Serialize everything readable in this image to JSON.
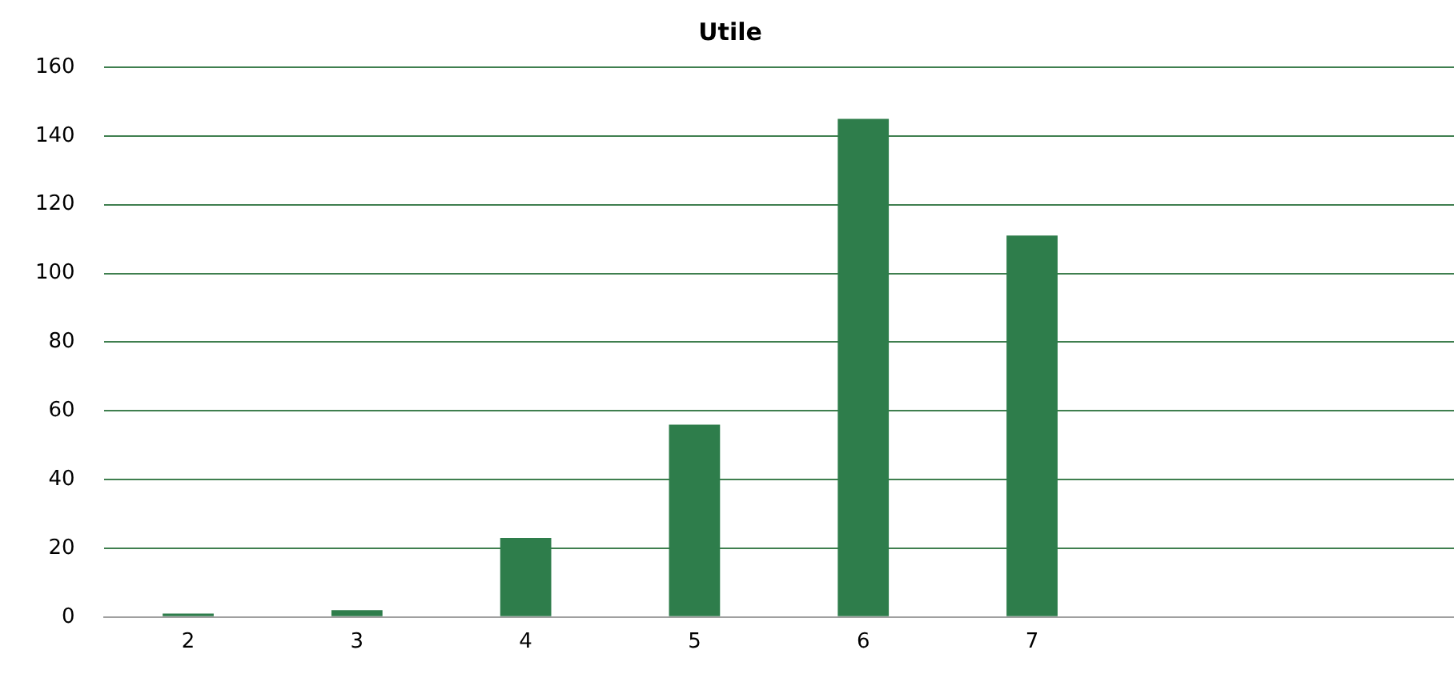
{
  "chart_data": {
    "type": "bar",
    "title": "Utile",
    "categories": [
      "2",
      "3",
      "4",
      "5",
      "6",
      "7",
      null,
      null
    ],
    "values": [
      1,
      2,
      23,
      56,
      145,
      111,
      null,
      null
    ],
    "color": "#2e7d4b",
    "ylim": [
      0,
      160
    ],
    "yticks": [
      0,
      20,
      40,
      60,
      80,
      100,
      120,
      140,
      160
    ],
    "grid": "y",
    "legend": false
  }
}
